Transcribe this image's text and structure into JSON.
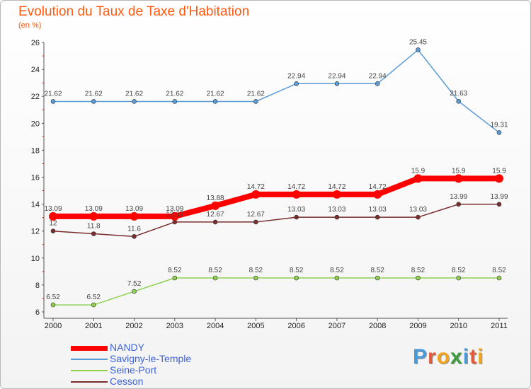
{
  "title": "Evolution du Taux de Taxe d'Habitation",
  "unit_note": "(en %)",
  "logo": {
    "letters": [
      "P",
      "r",
      "o",
      "x",
      "i",
      "t",
      "i"
    ],
    "colors": [
      "#4a9ad8",
      "#e35a3c",
      "#f2a31b",
      "#3d9b3a",
      "#4a9ad8",
      "#e35a3c",
      "#f2a31b"
    ]
  },
  "chart_data": {
    "type": "line",
    "x": [
      "2000",
      "2001",
      "2002",
      "2003",
      "2004",
      "2005",
      "2006",
      "2007",
      "2008",
      "2009",
      "2010",
      "2011"
    ],
    "ylim": [
      6,
      26
    ],
    "yticks": [
      6,
      8,
      10,
      12,
      14,
      16,
      18,
      20,
      22,
      24,
      26
    ],
    "grid": false,
    "legend_position": "bottom-left",
    "series": [
      {
        "name": "NANDY",
        "color": "#ff0000",
        "width": 8,
        "marker": 6,
        "values": [
          13.09,
          13.09,
          13.09,
          13.09,
          13.88,
          14.72,
          14.72,
          14.72,
          14.72,
          15.9,
          15.9,
          15.9
        ],
        "labels": [
          "13.09",
          "13.09",
          "13.09",
          "13.09",
          "13.88",
          "14.72",
          "14.72",
          "14.72",
          "14.72",
          "15.9",
          "15.9",
          "15.9"
        ]
      },
      {
        "name": "Savigny-le-Temple",
        "color": "#5b9bd5",
        "width": 1.5,
        "marker": 3,
        "values": [
          21.62,
          21.62,
          21.62,
          21.62,
          21.62,
          21.62,
          22.94,
          22.94,
          22.94,
          25.45,
          21.63,
          19.31
        ],
        "labels": [
          "21.62",
          "21.62",
          "21.62",
          "21.62",
          "21.62",
          "21.62",
          "22.94",
          "22.94",
          "22.94",
          "25.45",
          "21.63",
          "19.31"
        ]
      },
      {
        "name": "Seine-Port",
        "color": "#8fd14f",
        "width": 1.5,
        "marker": 3,
        "values": [
          6.52,
          6.52,
          7.52,
          8.52,
          8.52,
          8.52,
          8.52,
          8.52,
          8.52,
          8.52,
          8.52,
          8.52
        ],
        "labels": [
          "6.52",
          "6.52",
          "7.52",
          "8.52",
          "8.52",
          "8.52",
          "8.52",
          "8.52",
          "8.52",
          "8.52",
          "8.52",
          "8.52"
        ]
      },
      {
        "name": "Cesson",
        "color": "#7b2d2d",
        "width": 1.5,
        "marker": 3,
        "values": [
          12,
          11.8,
          11.6,
          12.67,
          12.67,
          12.67,
          13.03,
          13.03,
          13.03,
          13.03,
          13.99,
          13.99
        ],
        "labels": [
          "12",
          "11.8",
          "11.6",
          "12.67",
          "12.67",
          "12.67",
          "13.03",
          "13.03",
          "13.03",
          "13.03",
          "13.99",
          "13.99"
        ]
      }
    ]
  }
}
